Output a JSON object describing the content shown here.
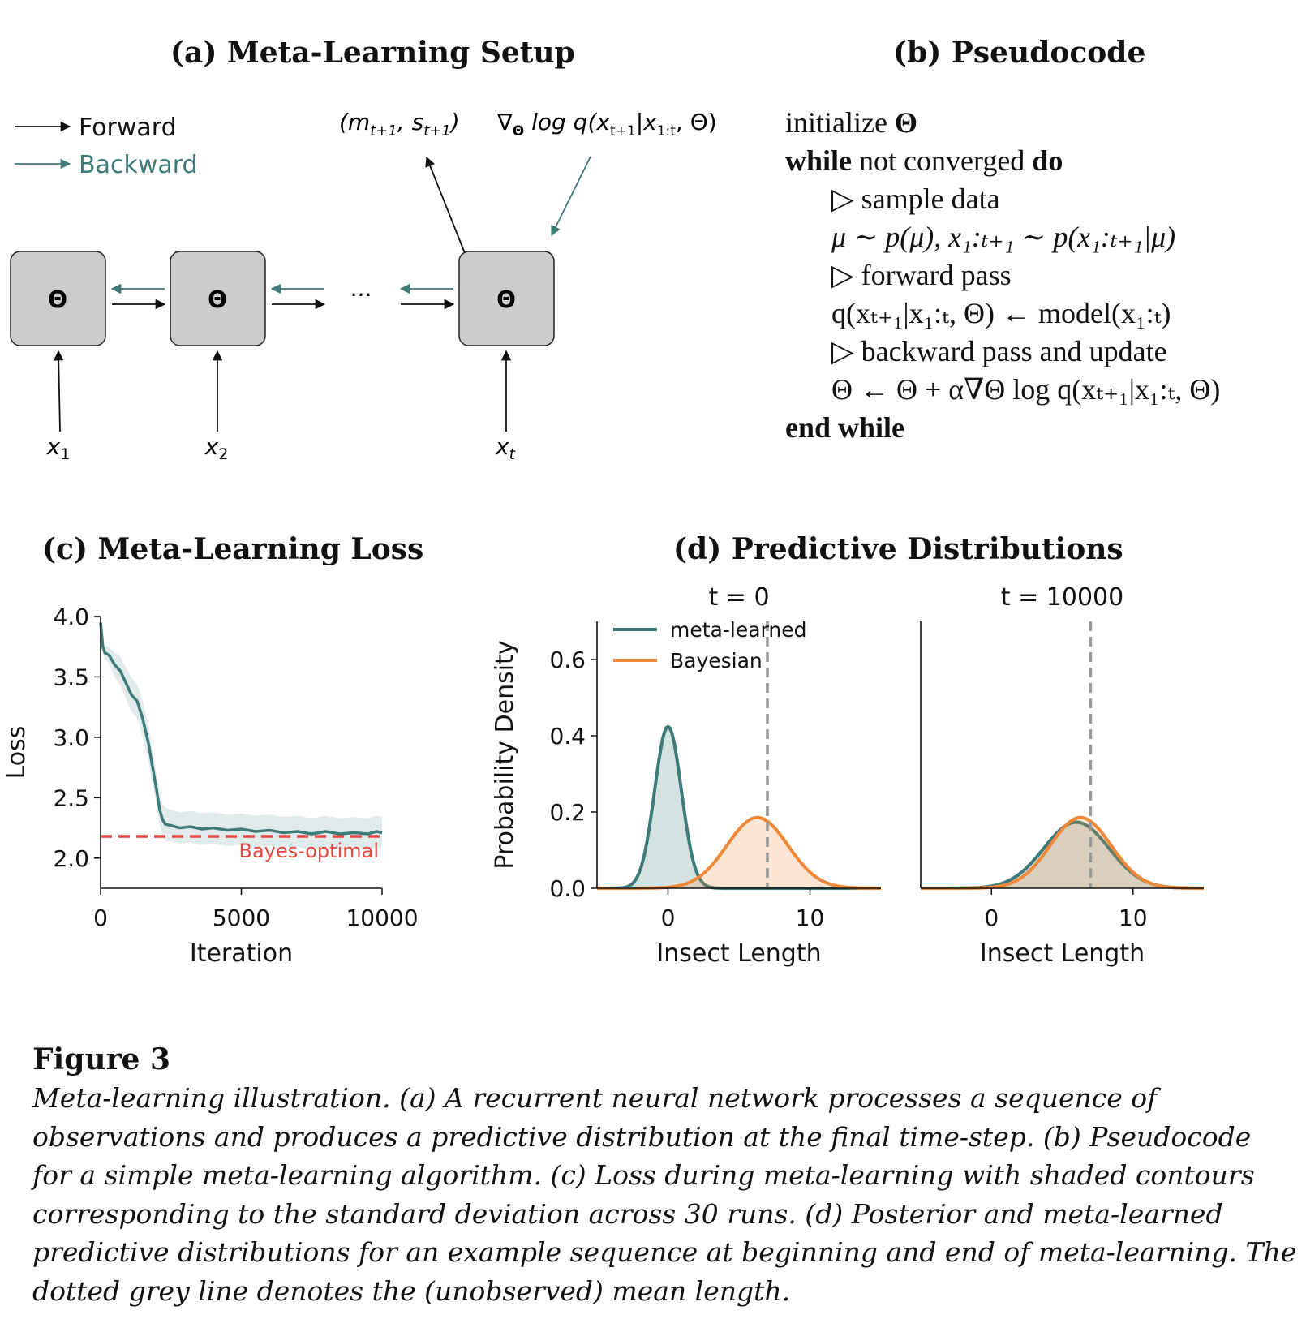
{
  "panel_a": {
    "title": "(a) Meta-Learning Setup",
    "legend_forward": "Forward",
    "legend_backward": "Backward",
    "node_label": "Θ",
    "ellipsis": "···",
    "output_params": "(m",
    "output_params_sub1": "t+1",
    "output_params_mid": ", s",
    "output_params_sub2": "t+1",
    "output_params_end": ")",
    "gradient_pre": "∇",
    "gradient_sub": "Θ",
    "gradient_mid": " log q(x",
    "gradient_sub2": "t+1",
    "gradient_bar": "|x",
    "gradient_sub3": "1:t",
    "gradient_end": ", Θ)",
    "inputs": [
      {
        "var": "x",
        "sub": "1"
      },
      {
        "var": "x",
        "sub": "2"
      },
      {
        "var": "x",
        "sub": "t"
      }
    ],
    "colors": {
      "forward": "#111111",
      "backward": "#3d7a78",
      "node_fill": "#cccccc"
    }
  },
  "panel_b": {
    "title": "(b) Pseudocode",
    "lines": {
      "l1_a": "initialize ",
      "l1_b": "Θ",
      "l2_a": "while",
      "l2_b": " not converged ",
      "l2_c": "do",
      "l3": "▷ sample data",
      "l4": "μ ∼ p(μ), x₁:ₜ₊₁ ∼ p(x₁:ₜ₊₁|μ)",
      "l5": "▷ forward pass",
      "l6": "q(xₜ₊₁|x₁:ₜ, Θ) ← model(x₁:ₜ)",
      "l7": "▷ backward pass and update",
      "l8": "Θ ← Θ + α∇Θ log q(xₜ₊₁|x₁:ₜ, Θ)",
      "l9": "end while"
    }
  },
  "panel_c": {
    "title": "(c) Meta-Learning Loss",
    "bayes_label": "Bayes-optimal"
  },
  "panel_d": {
    "title": "(d) Predictive Distributions"
  },
  "chart_data": [
    {
      "type": "line",
      "xlabel": "Iteration",
      "ylabel": "Loss",
      "xlim": [
        0,
        10000
      ],
      "ylim": [
        1.75,
        4.0
      ],
      "xticks": [
        "0",
        "5000",
        "10000"
      ],
      "yticks": [
        "2.0",
        "2.5",
        "3.0",
        "3.5",
        "4.0"
      ],
      "series": [
        {
          "name": "",
          "color": "#3d7a78",
          "x": [
            0,
            80,
            150,
            300,
            500,
            700,
            900,
            1100,
            1300,
            1500,
            1700,
            1850,
            2000,
            2100,
            2200,
            2300,
            2500,
            2800,
            3200,
            3600,
            4000,
            4500,
            5000,
            5500,
            6000,
            6500,
            7000,
            7500,
            8000,
            8500,
            9000,
            9500,
            9800,
            10000
          ],
          "y": [
            3.95,
            3.75,
            3.7,
            3.68,
            3.6,
            3.55,
            3.45,
            3.35,
            3.3,
            3.15,
            2.95,
            2.75,
            2.55,
            2.4,
            2.32,
            2.28,
            2.27,
            2.25,
            2.26,
            2.24,
            2.25,
            2.23,
            2.24,
            2.22,
            2.23,
            2.21,
            2.22,
            2.2,
            2.22,
            2.2,
            2.21,
            2.2,
            2.22,
            2.21
          ],
          "std": [
            0.05,
            0.05,
            0.06,
            0.07,
            0.1,
            0.12,
            0.13,
            0.14,
            0.14,
            0.15,
            0.15,
            0.14,
            0.13,
            0.12,
            0.13,
            0.14,
            0.13,
            0.13,
            0.13,
            0.13,
            0.13,
            0.13,
            0.13,
            0.13,
            0.13,
            0.13,
            0.13,
            0.13,
            0.13,
            0.13,
            0.13,
            0.13,
            0.13,
            0.13
          ]
        },
        {
          "name": "Bayes-optimal",
          "color": "#e8473f",
          "style": "dashed",
          "x": [
            0,
            10000
          ],
          "y": [
            2.18,
            2.18
          ]
        }
      ]
    },
    {
      "type": "area",
      "title": "t = 0",
      "xlabel": "Insect Length",
      "ylabel": "Probability Density",
      "xlim": [
        -5,
        15
      ],
      "ylim": [
        0,
        0.7
      ],
      "xticks": [
        "0",
        "10"
      ],
      "yticks": [
        "0.0",
        "0.2",
        "0.4",
        "0.6"
      ],
      "legend": "top-left",
      "vline": 7,
      "series": [
        {
          "name": "meta-learned",
          "color": "#3d7a78",
          "mean": 0,
          "sd": 0.94
        },
        {
          "name": "Bayesian",
          "color": "#f0883a",
          "mean": 6.3,
          "sd": 2.15
        }
      ]
    },
    {
      "type": "area",
      "title": "t = 10000",
      "xlabel": "Insect Length",
      "xlim": [
        -5,
        15
      ],
      "ylim": [
        0,
        0.7
      ],
      "xticks": [
        "0",
        "10"
      ],
      "vline": 7,
      "series": [
        {
          "name": "meta-learned",
          "color": "#3d7a78",
          "mean": 6.0,
          "sd": 2.3
        },
        {
          "name": "Bayesian",
          "color": "#f0883a",
          "mean": 6.3,
          "sd": 2.15
        }
      ]
    }
  ],
  "caption": {
    "label": "Figure 3",
    "lines": [
      "Meta-learning illustration. (a) A recurrent neural network processes a sequence of",
      "observations and produces a predictive distribution at the final time-step. (b) Pseudocode",
      "for a simple meta-learning algorithm. (c) Loss during meta-learning with shaded contours",
      "corresponding to the standard deviation across 30 runs. (d) Posterior and meta-learned",
      "predictive distributions for an example sequence at beginning and end of meta-learning. The",
      "dotted grey line denotes the (unobserved) mean length."
    ]
  }
}
